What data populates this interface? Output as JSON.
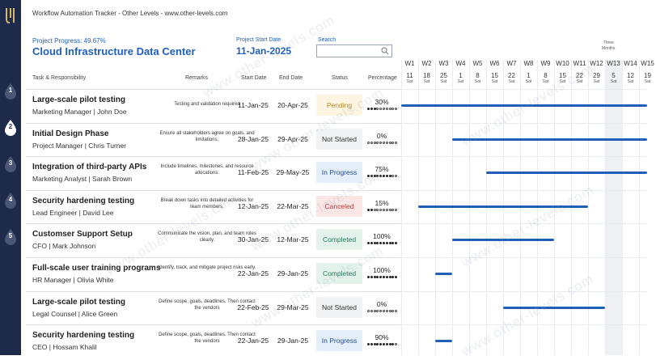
{
  "header": {
    "app_title": "Workflow Automation Tracker",
    "subtitle": "Other Levels",
    "website": "www.other-levels.com",
    "separator": "-"
  },
  "project": {
    "progress_label": "Project Progress: 49.67%",
    "progress_fraction": 0.4967,
    "title": "Cloud Infrastructure Data Center",
    "start_label": "Project Start Date",
    "start_date": "11-Jan-2025"
  },
  "search": {
    "label": "Search",
    "value": "",
    "placeholder": ""
  },
  "steps": [
    "1",
    "2",
    "3",
    "4",
    "5"
  ],
  "active_step": "2",
  "columns": {
    "task": "Task & Responsibility",
    "remarks": "Remarks",
    "start": "Start Date",
    "end": "End Date",
    "status": "Status",
    "percentage": "Percentage"
  },
  "gantt": {
    "three_months_line1": "Three",
    "three_months_line2": "Months",
    "weeks": [
      {
        "w": "W1",
        "d": "11",
        "wd": "Sat"
      },
      {
        "w": "W2",
        "d": "18",
        "wd": "Sat"
      },
      {
        "w": "W3",
        "d": "25",
        "wd": "Sat"
      },
      {
        "w": "W4",
        "d": "1",
        "wd": "Sat"
      },
      {
        "w": "W5",
        "d": "8",
        "wd": "Sat"
      },
      {
        "w": "W6",
        "d": "15",
        "wd": "Sat"
      },
      {
        "w": "W7",
        "d": "22",
        "wd": "Sat"
      },
      {
        "w": "W8",
        "d": "1",
        "wd": "Sat"
      },
      {
        "w": "W9",
        "d": "8",
        "wd": "Sat"
      },
      {
        "w": "W10",
        "d": "15",
        "wd": "Sat"
      },
      {
        "w": "W11",
        "d": "22",
        "wd": "Sat"
      },
      {
        "w": "W12",
        "d": "29",
        "wd": "Sat"
      },
      {
        "w": "W13",
        "d": "5",
        "wd": "Sat"
      },
      {
        "w": "W14",
        "d": "12",
        "wd": "Sat"
      },
      {
        "w": "W15",
        "d": "19",
        "wd": "Sat"
      }
    ],
    "shaded_week": 12
  },
  "tasks": [
    {
      "title": "Large-scale pilot testing",
      "owner": "Marketing Manager | John Doe",
      "remarks": "Testing and validation required",
      "start": "11-Jan-25",
      "end": "20-Apr-25",
      "status": "Pending",
      "percent": "30%",
      "percent_value": 30,
      "bar_start_week": 0,
      "bar_end_week": 15
    },
    {
      "title": "Initial Design Phase",
      "owner": "Project Manager | Chris Turner",
      "remarks": "Ensure all stakeholders agree on goals, and limitations.",
      "start": "28-Jan-25",
      "end": "29-Apr-25",
      "status": "Not Started",
      "percent": "0%",
      "percent_value": 0,
      "bar_start_week": 3,
      "bar_end_week": 15
    },
    {
      "title": "Integration of third-party APIs",
      "owner": "Marketing Analyst | Sarah Brown",
      "remarks": "Include timelines, milestones, and resource allocations.",
      "start": "11-Feb-25",
      "end": "29-May-25",
      "status": "In Progress",
      "percent": "75%",
      "percent_value": 75,
      "bar_start_week": 5,
      "bar_end_week": 15
    },
    {
      "title": "Security hardening testing",
      "owner": "Lead Engineer | David Lee",
      "remarks": "Break down tasks into detailed activities for team members.",
      "start": "12-Jan-25",
      "end": "22-Mar-25",
      "status": "Canceled",
      "percent": "15%",
      "percent_value": 15,
      "bar_start_week": 1,
      "bar_end_week": 11
    },
    {
      "title": "Customser Support Setup",
      "owner": "CFO | Mark Johnson",
      "remarks": "Communicate the vision, plan, and team roles clearly.",
      "start": "30-Jan-25",
      "end": "12-Mar-25",
      "status": "Completed",
      "percent": "100%",
      "percent_value": 100,
      "bar_start_week": 3,
      "bar_end_week": 9
    },
    {
      "title": "Full-scale user training programs",
      "owner": "HR Manager | Olivia White",
      "remarks": "Identify, track, and mitigate project risks early.",
      "start": "22-Jan-25",
      "end": "29-Jan-25",
      "status": "Completed",
      "percent": "100%",
      "percent_value": 100,
      "bar_start_week": 2,
      "bar_end_week": 3
    },
    {
      "title": "Large-scale pilot testing",
      "owner": "Legal Counsel | Alice Green",
      "remarks": "Define scope, goals, deadlines. Then contact the vendors",
      "start": "22-Feb-25",
      "end": "29-Mar-25",
      "status": "Not Started",
      "percent": "0%",
      "percent_value": 0,
      "bar_start_week": 6,
      "bar_end_week": 12
    },
    {
      "title": "Security hardening testing",
      "owner": "CEO | Hossam Khalil",
      "remarks": "Define scope, goals, deadlines. Then contact the vendors",
      "start": "22-Jan-25",
      "end": "29-Jan-25",
      "status": "In Progress",
      "percent": "90%",
      "percent_value": 90,
      "bar_start_week": 2,
      "bar_end_week": 3
    }
  ],
  "status_colors": {
    "Pending": {
      "bg": "#fdf4e1",
      "fg": "#b7862a"
    },
    "Not Started": {
      "bg": "#f1f2f4",
      "fg": "#333333"
    },
    "In Progress": {
      "bg": "#e4eef9",
      "fg": "#1f4f9b"
    },
    "Canceled": {
      "bg": "#fbe6e6",
      "fg": "#b33a3a"
    },
    "Completed": {
      "bg": "#e3f3ec",
      "fg": "#2a7a56"
    }
  },
  "colors": {
    "accent": "#1f5fb8",
    "rail": "#1e2a4a",
    "bar": "#1f5fb8"
  },
  "watermark": "www.other-levels.com"
}
